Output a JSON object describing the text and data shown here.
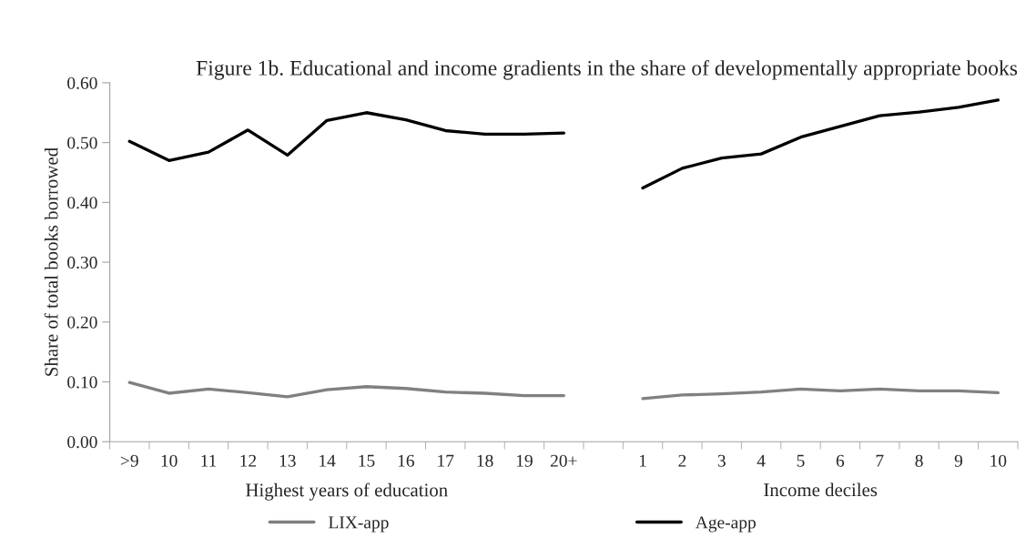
{
  "chart_data": {
    "type": "line",
    "title": "Figure 1b. Educational and income gradients in the share of developmentally appropriate books",
    "ylabel": "Share of total books borrowed",
    "categories": [
      ">9",
      "10",
      "11",
      "12",
      "13",
      "14",
      "15",
      "16",
      "17",
      "18",
      "19",
      "20+",
      null,
      "1",
      "2",
      "3",
      "4",
      "5",
      "6",
      "7",
      "8",
      "9",
      "10"
    ],
    "series": [
      {
        "name": "LIX-app",
        "color": "#808080",
        "values": [
          0.099,
          0.081,
          0.088,
          0.082,
          0.075,
          0.087,
          0.092,
          0.089,
          0.083,
          0.081,
          0.077,
          0.077,
          null,
          0.072,
          0.078,
          0.08,
          0.083,
          0.088,
          0.085,
          0.088,
          0.085,
          0.085,
          0.082
        ]
      },
      {
        "name": "Age-app",
        "color": "#000000",
        "values": [
          0.502,
          0.47,
          0.484,
          0.521,
          0.479,
          0.537,
          0.55,
          0.538,
          0.52,
          0.514,
          0.514,
          0.516,
          null,
          0.424,
          0.457,
          0.474,
          0.481,
          0.509,
          0.527,
          0.545,
          0.551,
          0.559,
          0.571
        ]
      }
    ],
    "annotations": [
      "Highest years of education",
      "Income deciles"
    ],
    "ylim": [
      0,
      0.6
    ],
    "yticks": [
      {
        "value": 0,
        "label": "0.00"
      },
      {
        "value": 0.1,
        "label": "0.10"
      },
      {
        "value": 0.2,
        "label": "0.20"
      },
      {
        "value": 0.3,
        "label": "0.30"
      },
      {
        "value": 0.4,
        "label": "0.40"
      },
      {
        "value": 0.5,
        "label": "0.50"
      },
      {
        "value": 0.6,
        "label": "0.60"
      }
    ],
    "grid": false,
    "legend": "bottom",
    "marker": "none",
    "line_style": "solid"
  }
}
